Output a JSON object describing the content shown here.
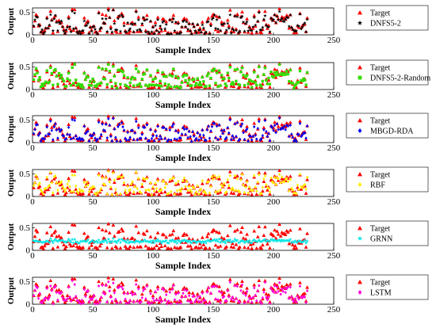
{
  "chart_data": [
    {
      "type": "scatter",
      "xlabel": "Sample Index",
      "ylabel": "Output",
      "xlim": [
        0,
        250
      ],
      "ylim": [
        0,
        0.6
      ],
      "xticks": [
        "0",
        "50",
        "100",
        "150",
        "200",
        "250"
      ],
      "yticks": [
        "0",
        "0.5"
      ],
      "legend": "right",
      "series": [
        {
          "name": "Target",
          "marker": "triangle",
          "color": "#ff0000"
        },
        {
          "name": "DNFS5-2",
          "marker": "star",
          "color": "#000000",
          "offset": 0.02,
          "noise": 0.05
        }
      ]
    },
    {
      "type": "scatter",
      "xlabel": "Sample Index",
      "ylabel": "Output",
      "xlim": [
        0,
        250
      ],
      "ylim": [
        0,
        0.6
      ],
      "xticks": [
        "0",
        "50",
        "100",
        "150",
        "200",
        "250"
      ],
      "yticks": [
        "0",
        "0.5"
      ],
      "legend": "right",
      "series": [
        {
          "name": "Target",
          "marker": "triangle",
          "color": "#ff0000"
        },
        {
          "name": "DNFS5-2-Random",
          "marker": "square",
          "color": "#33dd00",
          "offset": 0.04,
          "noise": 0.05
        }
      ]
    },
    {
      "type": "scatter",
      "xlabel": "Sample Index",
      "ylabel": "Output",
      "xlim": [
        0,
        250
      ],
      "ylim": [
        0,
        0.6
      ],
      "xticks": [
        "0",
        "50",
        "100",
        "150",
        "200",
        "250"
      ],
      "yticks": [
        "0",
        "0.5"
      ],
      "legend": "right",
      "series": [
        {
          "name": "Target",
          "marker": "triangle",
          "color": "#ff0000"
        },
        {
          "name": "MBGD-RDA",
          "marker": "diamond",
          "color": "#0000ee",
          "offset": 0.02,
          "noise": 0.04
        }
      ]
    },
    {
      "type": "scatter",
      "xlabel": "Sample Index",
      "ylabel": "Output",
      "xlim": [
        0,
        250
      ],
      "ylim": [
        0,
        0.6
      ],
      "xticks": [
        "0",
        "50",
        "100",
        "150",
        "200",
        "250"
      ],
      "yticks": [
        "0",
        "0.5"
      ],
      "legend": "right",
      "series": [
        {
          "name": "Target",
          "marker": "triangle",
          "color": "#ff0000"
        },
        {
          "name": "RBF",
          "marker": "diamond",
          "color": "#ffee00",
          "offset": 0.05,
          "noise": 0.06
        }
      ]
    },
    {
      "type": "scatter",
      "xlabel": "Sample Index",
      "ylabel": "Output",
      "xlim": [
        0,
        250
      ],
      "ylim": [
        0,
        0.6
      ],
      "xticks": [
        "0",
        "50",
        "100",
        "150",
        "200",
        "250"
      ],
      "yticks": [
        "0",
        "0.5"
      ],
      "legend": "right",
      "series": [
        {
          "name": "Target",
          "marker": "triangle",
          "color": "#ff0000"
        },
        {
          "name": "GRNN",
          "marker": "star",
          "color": "#00e5e5",
          "flat": 0.2,
          "noise": 0.025
        }
      ]
    },
    {
      "type": "scatter",
      "xlabel": "Sample Index",
      "ylabel": "Output",
      "xlim": [
        0,
        250
      ],
      "ylim": [
        0,
        0.6
      ],
      "xticks": [
        "0",
        "50",
        "100",
        "150",
        "200",
        "250"
      ],
      "yticks": [
        "0",
        "0.5"
      ],
      "legend": "right",
      "series": [
        {
          "name": "Target",
          "marker": "triangle",
          "color": "#ff0000"
        },
        {
          "name": "LSTM",
          "marker": "diamond",
          "color": "#ff00dd",
          "offset": 0.0,
          "noise": 0.05
        }
      ]
    }
  ]
}
